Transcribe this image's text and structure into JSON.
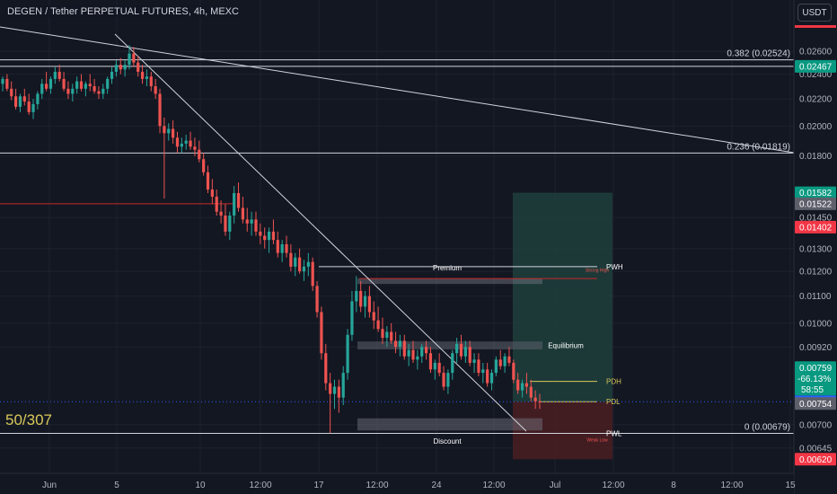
{
  "header": {
    "title": "DEGEN / Tether PERPETUAL FUTURES, 4h, MEXC",
    "currency_button": "USDT"
  },
  "overlay": {
    "counter": "50/307"
  },
  "colors": {
    "background": "#131722",
    "grid": "#1e222d",
    "up": "#26a69a",
    "down": "#ef5350",
    "premium_zone": "#1f3f3c",
    "discount_zone": "#4a1f22",
    "equilibrium_box": "#5d606b",
    "level_yellow": "#d8c85a",
    "resistance_red": "#c62828"
  },
  "chart_data": {
    "type": "candlestick",
    "title": "DEGEN / Tether PERPETUAL FUTURES, 4h, MEXC",
    "timeframe": "4h",
    "exchange": "MEXC",
    "y_scale": "log",
    "ylim": [
      0.0059,
      0.0298
    ],
    "x_ticks": [
      "Jun",
      "5",
      "10",
      "12:00",
      "17",
      "12:00",
      "24",
      "12:00",
      "Jul",
      "12:00",
      "8",
      "12:00",
      "15"
    ],
    "y_ticks": [
      0.026,
      0.024,
      0.022,
      0.02,
      0.018,
      0.0145,
      0.013,
      0.012,
      0.011,
      0.01,
      0.0092,
      0.007,
      0.00645
    ],
    "y_tick_labels": [
      "0.02600",
      "0.02400",
      "0.02200",
      "0.02000",
      "0.01800",
      "0.01450",
      "0.01300",
      "0.01200",
      "0.01100",
      "0.01000",
      "0.00920",
      "0.00700",
      "0.00645"
    ],
    "price_tags": [
      {
        "label": "0.02467",
        "value": 0.02467,
        "color": "#089981"
      },
      {
        "label": "0.01582",
        "value": 0.01582,
        "color": "#089981"
      },
      {
        "label": "0.01522",
        "value": 0.01522,
        "color": "#5d606b"
      },
      {
        "label": "0.01402",
        "value": 0.01402,
        "color": "#f23645"
      },
      {
        "label": "0.00759",
        "value": 0.00759,
        "color": "#2962ff"
      },
      {
        "label": "0.00754",
        "value": 0.00754,
        "color": "#5d606b"
      },
      {
        "label": "0.00620",
        "value": 0.0062,
        "color": "#f23645"
      }
    ],
    "last_price": {
      "price": "0.00759",
      "change": "-66.13%",
      "countdown": "58:55",
      "value": 0.00759
    },
    "fib_levels": [
      {
        "label": "0.382 (0.02524)",
        "value": 0.02524
      },
      {
        "label": "0.236 (0.01819)",
        "value": 0.01819
      },
      {
        "label": "0 (0.00679)",
        "value": 0.00679
      }
    ],
    "range_levels": [
      {
        "label": "PWH",
        "value": 0.0122
      },
      {
        "label": "PDH",
        "value": 0.00815
      },
      {
        "label": "PDL",
        "value": 0.00759
      },
      {
        "label": "PWL",
        "value": 0.00679
      }
    ],
    "zone_labels": [
      {
        "label": "Premium",
        "value": 0.0122
      },
      {
        "label": "Equilibrium",
        "value": 0.00925
      },
      {
        "label": "Discount",
        "value": 0.00661
      },
      {
        "label": "Strong High",
        "value": 0.0121
      },
      {
        "label": "Weak Low",
        "value": 0.00666
      }
    ],
    "candles": [
      [
        0.0232,
        0.0238,
        0.0226,
        0.0236
      ],
      [
        0.0236,
        0.024,
        0.0226,
        0.0228
      ],
      [
        0.0228,
        0.0234,
        0.0219,
        0.0222
      ],
      [
        0.0222,
        0.0228,
        0.0212,
        0.0214
      ],
      [
        0.0214,
        0.0224,
        0.021,
        0.0222
      ],
      [
        0.0222,
        0.0228,
        0.0215,
        0.0218
      ],
      [
        0.0218,
        0.0224,
        0.0208,
        0.021
      ],
      [
        0.021,
        0.022,
        0.0205,
        0.0216
      ],
      [
        0.0216,
        0.0226,
        0.0212,
        0.0224
      ],
      [
        0.0224,
        0.0236,
        0.022,
        0.0232
      ],
      [
        0.0232,
        0.0242,
        0.0226,
        0.0228
      ],
      [
        0.0228,
        0.0238,
        0.0224,
        0.0236
      ],
      [
        0.0236,
        0.0246,
        0.0232,
        0.0242
      ],
      [
        0.0242,
        0.0248,
        0.0234,
        0.0236
      ],
      [
        0.0236,
        0.0242,
        0.0226,
        0.0228
      ],
      [
        0.0228,
        0.0234,
        0.022,
        0.0224
      ],
      [
        0.0224,
        0.0232,
        0.0218,
        0.0228
      ],
      [
        0.0228,
        0.0238,
        0.0224,
        0.0234
      ],
      [
        0.0234,
        0.024,
        0.0226,
        0.0228
      ],
      [
        0.0228,
        0.0234,
        0.0222,
        0.0232
      ],
      [
        0.0232,
        0.024,
        0.0226,
        0.023
      ],
      [
        0.023,
        0.0236,
        0.0224,
        0.0226
      ],
      [
        0.0226,
        0.023,
        0.022,
        0.0224
      ],
      [
        0.0224,
        0.0232,
        0.022,
        0.0228
      ],
      [
        0.0228,
        0.0238,
        0.0224,
        0.0236
      ],
      [
        0.0236,
        0.0246,
        0.0232,
        0.0242
      ],
      [
        0.0242,
        0.0252,
        0.0238,
        0.0248
      ],
      [
        0.0248,
        0.0254,
        0.024,
        0.0244
      ],
      [
        0.0244,
        0.0252,
        0.0238,
        0.0248
      ],
      [
        0.0248,
        0.0266,
        0.0244,
        0.0258
      ],
      [
        0.0258,
        0.0264,
        0.0246,
        0.025
      ],
      [
        0.025,
        0.0256,
        0.0238,
        0.0242
      ],
      [
        0.0242,
        0.0248,
        0.0232,
        0.0236
      ],
      [
        0.0236,
        0.0244,
        0.023,
        0.0238
      ],
      [
        0.0238,
        0.0242,
        0.0226,
        0.023
      ],
      [
        0.023,
        0.0236,
        0.022,
        0.0224
      ],
      [
        0.0224,
        0.0228,
        0.0195,
        0.02
      ],
      [
        0.02,
        0.0206,
        0.0155,
        0.0195
      ],
      [
        0.0195,
        0.0202,
        0.019,
        0.0198
      ],
      [
        0.0198,
        0.0204,
        0.0188,
        0.0192
      ],
      [
        0.0192,
        0.0196,
        0.0182,
        0.0186
      ],
      [
        0.0186,
        0.0192,
        0.0182,
        0.0188
      ],
      [
        0.0188,
        0.0194,
        0.0184,
        0.019
      ],
      [
        0.019,
        0.0196,
        0.0184,
        0.0186
      ],
      [
        0.0186,
        0.0192,
        0.018,
        0.0184
      ],
      [
        0.0184,
        0.019,
        0.0176,
        0.0178
      ],
      [
        0.0178,
        0.0182,
        0.0168,
        0.017
      ],
      [
        0.017,
        0.0174,
        0.0158,
        0.016
      ],
      [
        0.016,
        0.0166,
        0.0152,
        0.0156
      ],
      [
        0.0156,
        0.016,
        0.0146,
        0.0148
      ],
      [
        0.0148,
        0.0154,
        0.0142,
        0.0146
      ],
      [
        0.0146,
        0.0152,
        0.0136,
        0.0138
      ],
      [
        0.0138,
        0.0148,
        0.0134,
        0.0146
      ],
      [
        0.0146,
        0.0162,
        0.0142,
        0.0158
      ],
      [
        0.0158,
        0.0164,
        0.0148,
        0.015
      ],
      [
        0.015,
        0.0156,
        0.0142,
        0.0144
      ],
      [
        0.0144,
        0.015,
        0.0138,
        0.0142
      ],
      [
        0.0142,
        0.0148,
        0.0136,
        0.0144
      ],
      [
        0.0144,
        0.0148,
        0.0136,
        0.0138
      ],
      [
        0.0138,
        0.0142,
        0.0132,
        0.0136
      ],
      [
        0.0136,
        0.014,
        0.013,
        0.0134
      ],
      [
        0.0134,
        0.014,
        0.0128,
        0.0138
      ],
      [
        0.0138,
        0.0144,
        0.0132,
        0.0134
      ],
      [
        0.0134,
        0.0138,
        0.0126,
        0.0128
      ],
      [
        0.0128,
        0.0134,
        0.0124,
        0.0132
      ],
      [
        0.0132,
        0.0136,
        0.0126,
        0.0128
      ],
      [
        0.0128,
        0.0132,
        0.012,
        0.0122
      ],
      [
        0.0122,
        0.0128,
        0.0118,
        0.0126
      ],
      [
        0.0126,
        0.013,
        0.0119,
        0.012
      ],
      [
        0.012,
        0.0125,
        0.0116,
        0.0122
      ],
      [
        0.0122,
        0.0128,
        0.0118,
        0.0124
      ],
      [
        0.0124,
        0.0126,
        0.0112,
        0.0114
      ],
      [
        0.0114,
        0.0116,
        0.0102,
        0.0104
      ],
      [
        0.0104,
        0.0106,
        0.0088,
        0.009
      ],
      [
        0.009,
        0.0093,
        0.0079,
        0.0081
      ],
      [
        0.0081,
        0.0084,
        0.0068,
        0.0078
      ],
      [
        0.0078,
        0.0082,
        0.0074,
        0.008
      ],
      [
        0.008,
        0.0082,
        0.0073,
        0.0077
      ],
      [
        0.0077,
        0.0086,
        0.0075,
        0.0084
      ],
      [
        0.0084,
        0.0098,
        0.0082,
        0.0096
      ],
      [
        0.0096,
        0.0112,
        0.0094,
        0.0108
      ],
      [
        0.0108,
        0.0118,
        0.0104,
        0.0112
      ],
      [
        0.0112,
        0.0116,
        0.0104,
        0.0106
      ],
      [
        0.0106,
        0.0112,
        0.0102,
        0.011
      ],
      [
        0.011,
        0.0114,
        0.0102,
        0.0104
      ],
      [
        0.0104,
        0.0108,
        0.0098,
        0.0101
      ],
      [
        0.0101,
        0.0106,
        0.0097,
        0.0098
      ],
      [
        0.0098,
        0.0102,
        0.0093,
        0.0095
      ],
      [
        0.0095,
        0.0099,
        0.0092,
        0.0097
      ],
      [
        0.0097,
        0.01,
        0.0093,
        0.0094
      ],
      [
        0.0094,
        0.0097,
        0.009,
        0.0092
      ],
      [
        0.0092,
        0.0096,
        0.0089,
        0.0094
      ],
      [
        0.0094,
        0.0096,
        0.0088,
        0.0089
      ],
      [
        0.0089,
        0.0093,
        0.0086,
        0.0091
      ],
      [
        0.0091,
        0.0094,
        0.0087,
        0.0088
      ],
      [
        0.0088,
        0.0091,
        0.0085,
        0.0089
      ],
      [
        0.0089,
        0.0093,
        0.0087,
        0.0092
      ],
      [
        0.0092,
        0.0094,
        0.0088,
        0.009
      ],
      [
        0.009,
        0.0092,
        0.0084,
        0.0085
      ],
      [
        0.0085,
        0.0088,
        0.0082,
        0.0087
      ],
      [
        0.0087,
        0.009,
        0.0083,
        0.0084
      ],
      [
        0.0084,
        0.0086,
        0.0079,
        0.008
      ],
      [
        0.008,
        0.0085,
        0.0078,
        0.0084
      ],
      [
        0.0084,
        0.0091,
        0.0082,
        0.009
      ],
      [
        0.009,
        0.0095,
        0.0087,
        0.0093
      ],
      [
        0.0093,
        0.0096,
        0.0088,
        0.0089
      ],
      [
        0.0089,
        0.0094,
        0.0087,
        0.0092
      ],
      [
        0.0092,
        0.0094,
        0.0086,
        0.0087
      ],
      [
        0.0087,
        0.009,
        0.0084,
        0.0088
      ],
      [
        0.0088,
        0.009,
        0.0083,
        0.0084
      ],
      [
        0.0084,
        0.0087,
        0.0081,
        0.0085
      ],
      [
        0.0085,
        0.0087,
        0.008,
        0.0081
      ],
      [
        0.0081,
        0.0085,
        0.0079,
        0.0084
      ],
      [
        0.0084,
        0.0089,
        0.0083,
        0.0088
      ],
      [
        0.0088,
        0.0091,
        0.0085,
        0.0086
      ],
      [
        0.0086,
        0.009,
        0.0084,
        0.0089
      ],
      [
        0.0089,
        0.0092,
        0.0086,
        0.0087
      ],
      [
        0.0087,
        0.0088,
        0.0081,
        0.0082
      ],
      [
        0.0082,
        0.0084,
        0.0078,
        0.0079
      ],
      [
        0.0079,
        0.0082,
        0.0077,
        0.0081
      ],
      [
        0.0081,
        0.0084,
        0.0078,
        0.008
      ],
      [
        0.008,
        0.0082,
        0.0076,
        0.0077
      ],
      [
        0.0077,
        0.0079,
        0.0074,
        0.0076
      ],
      [
        0.0076,
        0.0078,
        0.0074,
        0.00759
      ]
    ]
  }
}
